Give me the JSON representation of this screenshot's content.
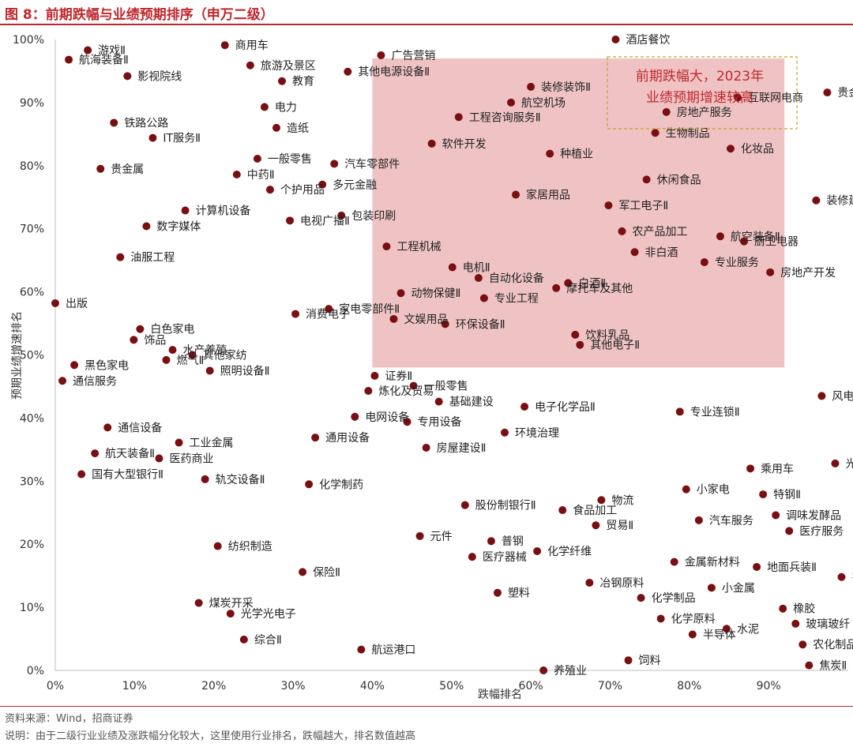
{
  "header": {
    "title": "图 8：前期跌幅与业绩预期排序（申万二级）"
  },
  "footer": {
    "source": "资料来源：Wind，招商证券",
    "note": "说明：由于二级行业业绩及涨跌幅分化较大，这里使用行业排名，跌幅越大，排名数值越高"
  },
  "colors": {
    "accent": "#c0272d",
    "point": "#7a0f12",
    "highlight_fill": "#efc3c4",
    "callout_border": "#c9a227"
  },
  "chart_data": {
    "type": "scatter",
    "xlabel": "跌幅排名",
    "ylabel": "预期业绩增速排名",
    "xlim": [
      0,
      100
    ],
    "ylim": [
      0,
      100
    ],
    "x_ticks": [
      "0%",
      "10%",
      "20%",
      "30%",
      "40%",
      "50%",
      "60%",
      "70%",
      "80%",
      "90%"
    ],
    "y_ticks": [
      "0%",
      "10%",
      "20%",
      "30%",
      "40%",
      "50%",
      "60%",
      "70%",
      "80%",
      "90%",
      "100%"
    ],
    "grid": false,
    "highlight_region": {
      "x": [
        40,
        92
      ],
      "y": [
        48,
        97
      ]
    },
    "annotation": [
      "前期跌幅大，2023年",
      "业绩预期增速较高"
    ],
    "points": [
      {
        "x": 70.7,
        "y": 100.0,
        "label": "酒店餐饮"
      },
      {
        "x": 21.4,
        "y": 99.1,
        "label": "商用车"
      },
      {
        "x": 4.1,
        "y": 98.3,
        "label": "游戏Ⅱ"
      },
      {
        "x": 1.7,
        "y": 96.8,
        "label": "航海装备Ⅱ"
      },
      {
        "x": 41.1,
        "y": 97.5,
        "label": "广告营销"
      },
      {
        "x": 24.6,
        "y": 95.9,
        "label": "旅游及景区"
      },
      {
        "x": 36.9,
        "y": 94.9,
        "label": "其他电源设备Ⅱ"
      },
      {
        "x": 9.1,
        "y": 94.2,
        "label": "影视院线"
      },
      {
        "x": 28.6,
        "y": 93.4,
        "label": "教育"
      },
      {
        "x": 60.0,
        "y": 92.5,
        "label": "装修装饰Ⅱ"
      },
      {
        "x": 97.4,
        "y": 91.6,
        "label": "贵金属"
      },
      {
        "x": 86.1,
        "y": 90.8,
        "label": "互联网电商"
      },
      {
        "x": 57.5,
        "y": 90.0,
        "label": "航空机场"
      },
      {
        "x": 26.4,
        "y": 89.3,
        "label": "电力"
      },
      {
        "x": 77.1,
        "y": 88.5,
        "label": "房地产服务"
      },
      {
        "x": 50.9,
        "y": 87.7,
        "label": "工程咨询服务Ⅱ"
      },
      {
        "x": 7.4,
        "y": 86.8,
        "label": "铁路公路"
      },
      {
        "x": 27.9,
        "y": 86.0,
        "label": "造纸"
      },
      {
        "x": 75.7,
        "y": 85.2,
        "label": "生物制品"
      },
      {
        "x": 12.3,
        "y": 84.4,
        "label": "IT服务Ⅱ"
      },
      {
        "x": 47.5,
        "y": 83.5,
        "label": "软件开发"
      },
      {
        "x": 85.2,
        "y": 82.7,
        "label": "化妆品"
      },
      {
        "x": 62.4,
        "y": 81.9,
        "label": "种植业"
      },
      {
        "x": 25.5,
        "y": 81.1,
        "label": "一般零售"
      },
      {
        "x": 35.2,
        "y": 80.3,
        "label": "汽车零部件"
      },
      {
        "x": 5.7,
        "y": 79.5,
        "label": "贵金属"
      },
      {
        "x": 22.9,
        "y": 78.6,
        "label": "中药Ⅱ"
      },
      {
        "x": 74.6,
        "y": 77.8,
        "label": "休闲食品"
      },
      {
        "x": 33.7,
        "y": 77.0,
        "label": "多元金融"
      },
      {
        "x": 27.1,
        "y": 76.2,
        "label": "个护用品"
      },
      {
        "x": 58.1,
        "y": 75.4,
        "label": "家居用品"
      },
      {
        "x": 96.0,
        "y": 74.5,
        "label": "装修建材"
      },
      {
        "x": 69.8,
        "y": 73.7,
        "label": "军工电子Ⅱ"
      },
      {
        "x": 16.4,
        "y": 72.9,
        "label": "计算机设备"
      },
      {
        "x": 36.1,
        "y": 72.1,
        "label": "包装印刷"
      },
      {
        "x": 29.6,
        "y": 71.3,
        "label": "电视广播Ⅱ"
      },
      {
        "x": 11.5,
        "y": 70.4,
        "label": "数字媒体"
      },
      {
        "x": 71.5,
        "y": 69.6,
        "label": "农产品加工"
      },
      {
        "x": 83.9,
        "y": 68.8,
        "label": "航空装备Ⅱ"
      },
      {
        "x": 86.9,
        "y": 68.0,
        "label": "厨卫电器"
      },
      {
        "x": 41.8,
        "y": 67.2,
        "label": "工程机械"
      },
      {
        "x": 73.1,
        "y": 66.3,
        "label": "非白酒"
      },
      {
        "x": 8.2,
        "y": 65.5,
        "label": "油服工程"
      },
      {
        "x": 81.9,
        "y": 64.7,
        "label": "专业服务"
      },
      {
        "x": 50.1,
        "y": 63.9,
        "label": "电机Ⅱ"
      },
      {
        "x": 90.2,
        "y": 63.1,
        "label": "房地产开发"
      },
      {
        "x": 53.4,
        "y": 62.2,
        "label": "自动化设备"
      },
      {
        "x": 64.7,
        "y": 61.4,
        "label": "白酒Ⅱ"
      },
      {
        "x": 63.2,
        "y": 60.6,
        "label": "摩托车及其他"
      },
      {
        "x": 43.6,
        "y": 59.8,
        "label": "动物保健Ⅱ"
      },
      {
        "x": 54.1,
        "y": 59.0,
        "label": "专业工程"
      },
      {
        "x": 0.0,
        "y": 58.2,
        "label": "出版"
      },
      {
        "x": 34.5,
        "y": 57.3,
        "label": "家电零部件Ⅱ"
      },
      {
        "x": 30.3,
        "y": 56.5,
        "label": "消费电子"
      },
      {
        "x": 42.7,
        "y": 55.7,
        "label": "文娱用品"
      },
      {
        "x": 49.2,
        "y": 54.9,
        "label": "环保设备Ⅱ"
      },
      {
        "x": 10.7,
        "y": 54.1,
        "label": "白色家电"
      },
      {
        "x": 65.6,
        "y": 53.2,
        "label": "饮料乳品"
      },
      {
        "x": 9.9,
        "y": 52.4,
        "label": "饰品"
      },
      {
        "x": 66.2,
        "y": 51.6,
        "label": "其他电子Ⅱ"
      },
      {
        "x": 14.8,
        "y": 50.8,
        "label": "水产养殖"
      },
      {
        "x": 17.3,
        "y": 50.0,
        "label": "其他家纺"
      },
      {
        "x": 14.0,
        "y": 49.2,
        "label": "燃气Ⅱ"
      },
      {
        "x": 2.4,
        "y": 48.4,
        "label": "黑色家电"
      },
      {
        "x": 19.5,
        "y": 47.5,
        "label": "照明设备Ⅱ"
      },
      {
        "x": 40.3,
        "y": 46.7,
        "label": "证券Ⅱ"
      },
      {
        "x": 0.9,
        "y": 45.9,
        "label": "通信服务"
      },
      {
        "x": 45.2,
        "y": 45.1,
        "label": "一般零售"
      },
      {
        "x": 39.5,
        "y": 44.3,
        "label": "炼化及贸易"
      },
      {
        "x": 96.7,
        "y": 43.5,
        "label": "风电设备"
      },
      {
        "x": 48.4,
        "y": 42.6,
        "label": "基础建设"
      },
      {
        "x": 59.2,
        "y": 41.8,
        "label": "电子化学品Ⅱ"
      },
      {
        "x": 78.8,
        "y": 41.0,
        "label": "专业连锁Ⅱ"
      },
      {
        "x": 37.8,
        "y": 40.2,
        "label": "电网设备"
      },
      {
        "x": 44.4,
        "y": 39.4,
        "label": "专用设备"
      },
      {
        "x": 6.6,
        "y": 38.5,
        "label": "通信设备"
      },
      {
        "x": 56.7,
        "y": 37.7,
        "label": "环境治理"
      },
      {
        "x": 32.8,
        "y": 36.9,
        "label": "通用设备"
      },
      {
        "x": 15.6,
        "y": 36.1,
        "label": "工业金属"
      },
      {
        "x": 46.8,
        "y": 35.3,
        "label": "房屋建设Ⅱ"
      },
      {
        "x": 5.0,
        "y": 34.4,
        "label": "航天装备Ⅱ"
      },
      {
        "x": 13.1,
        "y": 33.6,
        "label": "医药商业"
      },
      {
        "x": 98.4,
        "y": 32.8,
        "label": "光伏设备"
      },
      {
        "x": 87.7,
        "y": 32.0,
        "label": "乘用车"
      },
      {
        "x": 3.3,
        "y": 31.1,
        "label": "国有大型银行Ⅱ"
      },
      {
        "x": 18.9,
        "y": 30.3,
        "label": "轨交设备Ⅱ"
      },
      {
        "x": 32.0,
        "y": 29.5,
        "label": "化学制药"
      },
      {
        "x": 79.6,
        "y": 28.7,
        "label": "小家电"
      },
      {
        "x": 89.3,
        "y": 27.9,
        "label": "特钢Ⅱ"
      },
      {
        "x": 68.9,
        "y": 27.0,
        "label": "物流"
      },
      {
        "x": 51.7,
        "y": 26.2,
        "label": "股份制银行Ⅱ"
      },
      {
        "x": 64.0,
        "y": 25.4,
        "label": "食品加工"
      },
      {
        "x": 90.9,
        "y": 24.6,
        "label": "调味发酵品"
      },
      {
        "x": 81.2,
        "y": 23.8,
        "label": "汽车服务"
      },
      {
        "x": 68.2,
        "y": 23.0,
        "label": "贸易Ⅱ"
      },
      {
        "x": 92.6,
        "y": 22.1,
        "label": "医疗服务"
      },
      {
        "x": 46.0,
        "y": 21.3,
        "label": "元件"
      },
      {
        "x": 55.0,
        "y": 20.5,
        "label": "普钢"
      },
      {
        "x": 20.5,
        "y": 19.7,
        "label": "纺织制造"
      },
      {
        "x": 60.8,
        "y": 18.9,
        "label": "化学纤维"
      },
      {
        "x": 52.6,
        "y": 18.0,
        "label": "医疗器械"
      },
      {
        "x": 78.1,
        "y": 17.2,
        "label": "金属新材料"
      },
      {
        "x": 88.5,
        "y": 16.4,
        "label": "地面兵装Ⅱ"
      },
      {
        "x": 31.2,
        "y": 15.6,
        "label": "保险Ⅱ"
      },
      {
        "x": 99.2,
        "y": 14.8,
        "label": "农化制品"
      },
      {
        "x": 67.4,
        "y": 13.9,
        "label": "冶钢原料"
      },
      {
        "x": 82.8,
        "y": 13.1,
        "label": "小金属"
      },
      {
        "x": 55.8,
        "y": 12.3,
        "label": "塑料"
      },
      {
        "x": 73.9,
        "y": 11.5,
        "label": "化学制品"
      },
      {
        "x": 18.1,
        "y": 10.7,
        "label": "煤炭开采"
      },
      {
        "x": 91.8,
        "y": 9.8,
        "label": "橡胶"
      },
      {
        "x": 22.1,
        "y": 9.0,
        "label": "光学光电子"
      },
      {
        "x": 76.4,
        "y": 8.2,
        "label": "化学原料"
      },
      {
        "x": 93.4,
        "y": 7.4,
        "label": "玻璃玻纤"
      },
      {
        "x": 84.7,
        "y": 6.6,
        "label": "水泥"
      },
      {
        "x": 80.4,
        "y": 5.7,
        "label": "半导体"
      },
      {
        "x": 23.8,
        "y": 4.9,
        "label": "综合Ⅱ"
      },
      {
        "x": 94.3,
        "y": 4.1,
        "label": "农化制品"
      },
      {
        "x": 38.6,
        "y": 3.3,
        "label": "航运港口"
      },
      {
        "x": 72.3,
        "y": 1.6,
        "label": "饲料"
      },
      {
        "x": 95.1,
        "y": 0.8,
        "label": "焦炭Ⅱ"
      },
      {
        "x": 61.6,
        "y": 0.0,
        "label": "养殖业"
      }
    ]
  }
}
